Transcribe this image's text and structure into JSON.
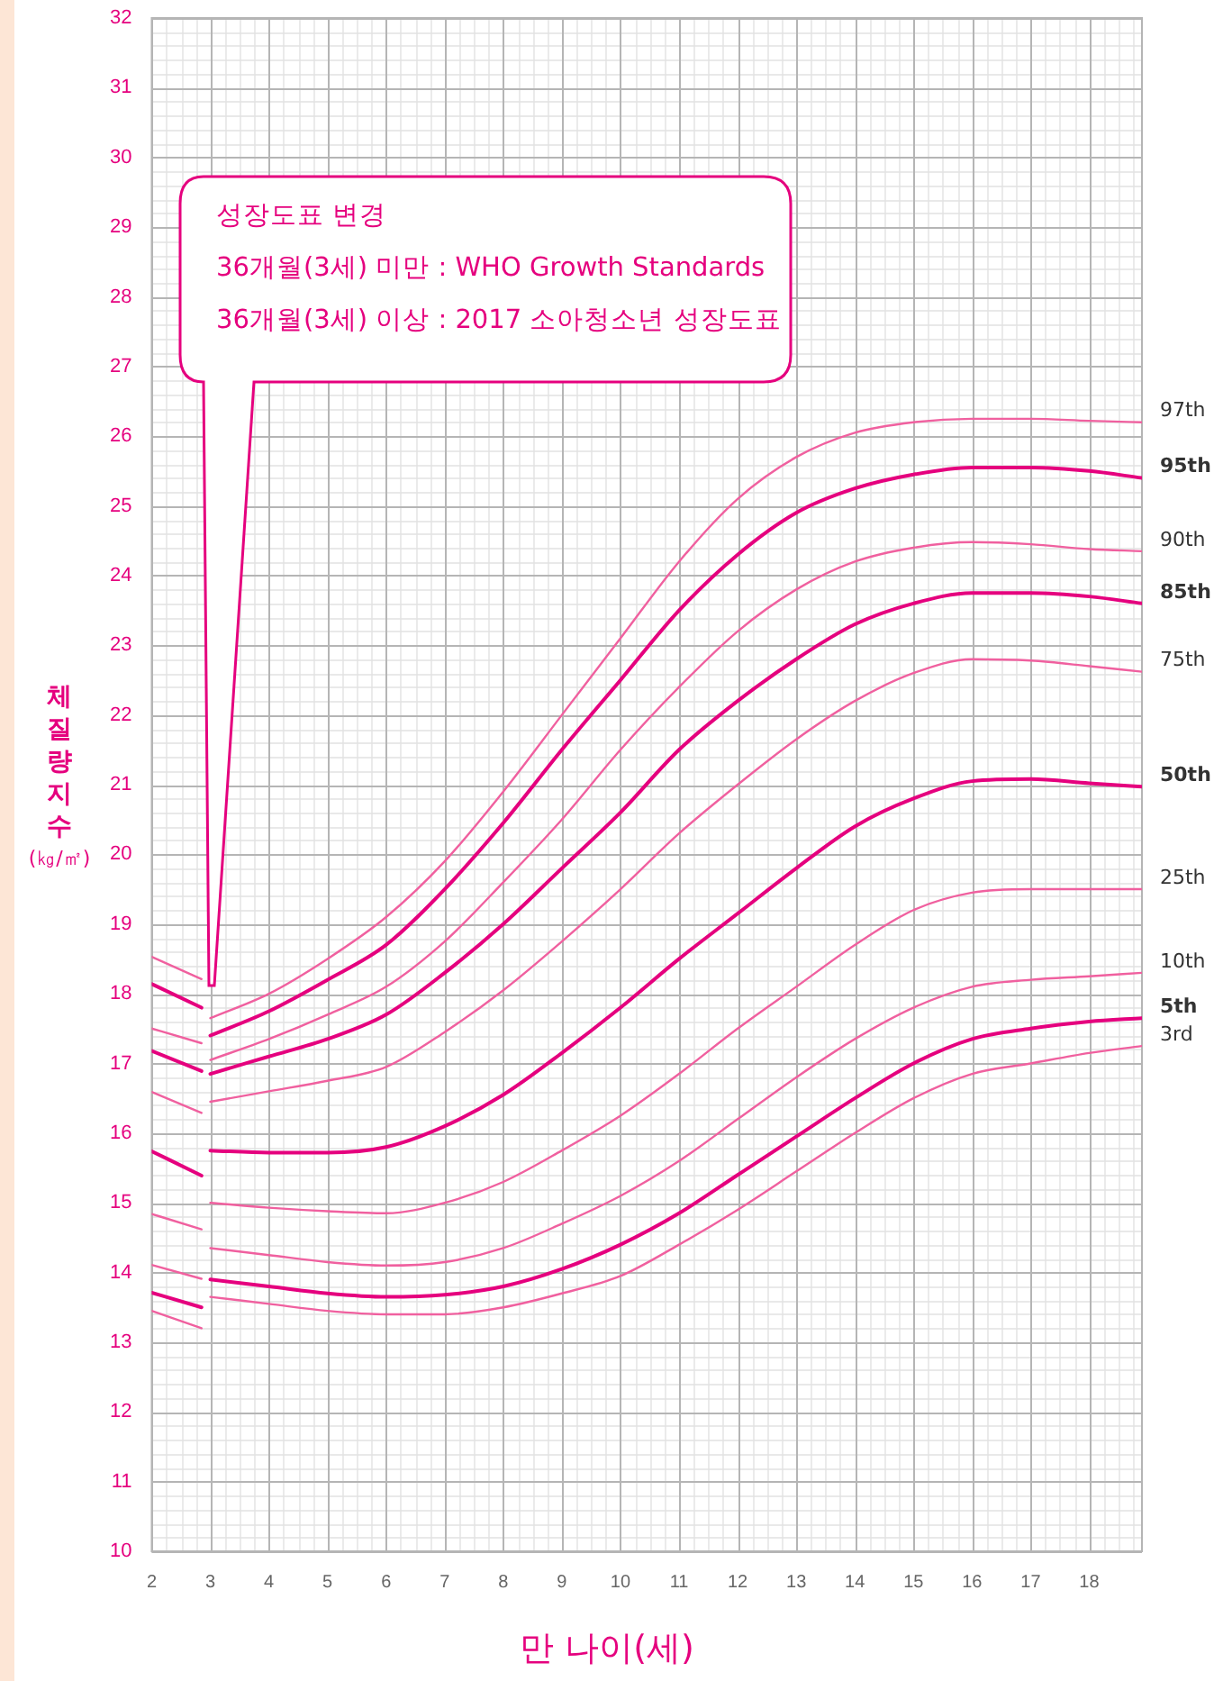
{
  "chart_data": {
    "type": "line",
    "xlabel": "만 나이(세)",
    "ylabel": "체질량지수 (㎏/㎡)",
    "x": [
      2,
      2.85,
      3,
      4,
      5,
      6,
      7,
      8,
      9,
      10,
      11,
      12,
      13,
      14,
      15,
      16,
      17,
      18,
      18.9
    ],
    "xlim": [
      2,
      18.9
    ],
    "xticks": [
      2,
      3,
      4,
      5,
      6,
      7,
      8,
      9,
      10,
      11,
      12,
      13,
      14,
      15,
      16,
      17,
      18
    ],
    "ylim": [
      10,
      32
    ],
    "yticks": [
      10,
      11,
      12,
      13,
      14,
      15,
      16,
      17,
      18,
      19,
      20,
      21,
      22,
      23,
      24,
      25,
      26,
      27,
      28,
      29,
      30,
      31,
      32
    ],
    "grid": true,
    "legend": false,
    "marker": "none",
    "line_style": "solid",
    "annotations": [
      "성장도표 변경",
      "36개월(3세) 미만 : WHO Growth Standards",
      "36개월(3세) 이상 : 2017 소아청소년 성장도표"
    ],
    "series": [
      {
        "name": "97th",
        "color": "#f0609f",
        "values": [
          null,
          null,
          17.65,
          18.0,
          18.5,
          19.1,
          19.9,
          20.9,
          22.0,
          23.1,
          24.2,
          25.1,
          25.7,
          26.05,
          26.2,
          26.25,
          26.25,
          26.22,
          26.2
        ]
      },
      {
        "name": "95th",
        "color": "#e5007e",
        "values": [
          null,
          null,
          17.4,
          17.75,
          18.2,
          18.7,
          19.5,
          20.45,
          21.5,
          22.5,
          23.5,
          24.3,
          24.9,
          25.25,
          25.45,
          25.55,
          25.55,
          25.5,
          25.4
        ]
      },
      {
        "name": "90th",
        "color": "#f0609f",
        "values": [
          null,
          null,
          17.05,
          17.35,
          17.7,
          18.1,
          18.75,
          19.6,
          20.5,
          21.5,
          22.4,
          23.2,
          23.8,
          24.2,
          24.4,
          24.48,
          24.45,
          24.38,
          24.35
        ]
      },
      {
        "name": "85th",
        "color": "#e5007e",
        "values": [
          null,
          null,
          16.85,
          17.1,
          17.35,
          17.7,
          18.3,
          19.0,
          19.8,
          20.6,
          21.5,
          22.2,
          22.8,
          23.3,
          23.6,
          23.75,
          23.75,
          23.7,
          23.6
        ]
      },
      {
        "name": "75th",
        "color": "#f0609f",
        "values": [
          null,
          null,
          16.45,
          16.6,
          16.75,
          16.95,
          17.45,
          18.05,
          18.75,
          19.5,
          20.3,
          21.0,
          21.65,
          22.2,
          22.6,
          22.8,
          22.78,
          22.7,
          22.62
        ]
      },
      {
        "name": "50th",
        "color": "#e5007e",
        "values": [
          null,
          null,
          15.75,
          15.72,
          15.72,
          15.8,
          16.1,
          16.55,
          17.15,
          17.8,
          18.5,
          19.15,
          19.8,
          20.4,
          20.8,
          21.05,
          21.08,
          21.02,
          20.97
        ]
      },
      {
        "name": "25th",
        "color": "#f0609f",
        "values": [
          null,
          null,
          15.0,
          14.93,
          14.88,
          14.85,
          15.0,
          15.3,
          15.75,
          16.25,
          16.85,
          17.5,
          18.1,
          18.7,
          19.2,
          19.45,
          19.5,
          19.5,
          19.5
        ]
      },
      {
        "name": "10th",
        "color": "#f0609f",
        "values": [
          null,
          null,
          14.35,
          14.25,
          14.15,
          14.1,
          14.15,
          14.35,
          14.7,
          15.1,
          15.6,
          16.2,
          16.8,
          17.35,
          17.8,
          18.1,
          18.2,
          18.25,
          18.3
        ]
      },
      {
        "name": "5th",
        "color": "#e5007e",
        "values": [
          null,
          null,
          13.9,
          13.8,
          13.7,
          13.65,
          13.68,
          13.8,
          14.05,
          14.4,
          14.85,
          15.4,
          15.95,
          16.5,
          17.0,
          17.35,
          17.5,
          17.6,
          17.65
        ]
      },
      {
        "name": "3rd",
        "color": "#f0609f",
        "values": [
          null,
          null,
          13.65,
          13.55,
          13.45,
          13.4,
          13.4,
          13.5,
          13.7,
          13.95,
          14.4,
          14.9,
          15.45,
          16.0,
          16.5,
          16.85,
          17.0,
          17.15,
          17.25
        ]
      },
      {
        "color": "#f0609f",
        "values": [
          18.53,
          18.21,
          null,
          null,
          null,
          null,
          null,
          null,
          null,
          null,
          null,
          null,
          null,
          null,
          null,
          null,
          null,
          null,
          null
        ]
      },
      {
        "color": "#e5007e",
        "values": [
          18.14,
          17.8,
          null,
          null,
          null,
          null,
          null,
          null,
          null,
          null,
          null,
          null,
          null,
          null,
          null,
          null,
          null,
          null,
          null
        ]
      },
      {
        "color": "#f0609f",
        "values": [
          17.5,
          17.29,
          null,
          null,
          null,
          null,
          null,
          null,
          null,
          null,
          null,
          null,
          null,
          null,
          null,
          null,
          null,
          null,
          null
        ]
      },
      {
        "color": "#e5007e",
        "values": [
          17.18,
          16.89,
          null,
          null,
          null,
          null,
          null,
          null,
          null,
          null,
          null,
          null,
          null,
          null,
          null,
          null,
          null,
          null,
          null
        ]
      },
      {
        "color": "#f0609f",
        "values": [
          16.59,
          16.29,
          null,
          null,
          null,
          null,
          null,
          null,
          null,
          null,
          null,
          null,
          null,
          null,
          null,
          null,
          null,
          null,
          null
        ]
      },
      {
        "color": "#e5007e",
        "values": [
          15.74,
          15.39,
          null,
          null,
          null,
          null,
          null,
          null,
          null,
          null,
          null,
          null,
          null,
          null,
          null,
          null,
          null,
          null,
          null
        ]
      },
      {
        "color": "#f0609f",
        "values": [
          14.84,
          14.62,
          null,
          null,
          null,
          null,
          null,
          null,
          null,
          null,
          null,
          null,
          null,
          null,
          null,
          null,
          null,
          null,
          null
        ]
      },
      {
        "color": "#f0609f",
        "values": [
          14.11,
          13.91,
          null,
          null,
          null,
          null,
          null,
          null,
          null,
          null,
          null,
          null,
          null,
          null,
          null,
          null,
          null,
          null,
          null
        ]
      },
      {
        "color": "#e5007e",
        "values": [
          13.71,
          13.5,
          null,
          null,
          null,
          null,
          null,
          null,
          null,
          null,
          null,
          null,
          null,
          null,
          null,
          null,
          null,
          null,
          null
        ]
      },
      {
        "color": "#f0609f",
        "values": [
          13.45,
          13.2,
          null,
          null,
          null,
          null,
          null,
          null,
          null,
          null,
          null,
          null,
          null,
          null,
          null,
          null,
          null,
          null,
          null
        ]
      }
    ]
  }
}
